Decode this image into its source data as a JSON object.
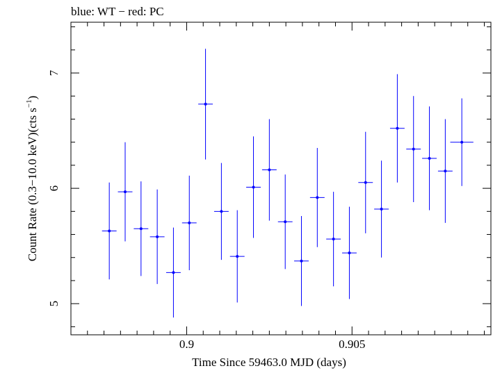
{
  "chart_data": {
    "type": "scatter",
    "title": "blue: WT − red: PC",
    "xlabel": "Time Since 59463.0 MJD (days)",
    "ylabel_main": "Count Rate (0.3−10.0 keV)(cts s",
    "ylabel_sup": "−1",
    "ylabel_close": ")",
    "xlim": [
      0.8965,
      0.9092
    ],
    "ylim": [
      4.73,
      7.44
    ],
    "x_ticks": [
      {
        "value": 0.9,
        "label": "0.9"
      },
      {
        "value": 0.905,
        "label": "0.905"
      }
    ],
    "x_minor_step": 0.0005,
    "y_ticks": [
      {
        "value": 5,
        "label": "5"
      },
      {
        "value": 6,
        "label": "6"
      },
      {
        "value": 7,
        "label": "7"
      }
    ],
    "y_minor_step": 0.2,
    "grid": false,
    "series": [
      {
        "color": "#0000ff",
        "points": [
          {
            "x": 0.89766,
            "xerr": 0.00022,
            "y": 5.63,
            "yerr": 0.42
          },
          {
            "x": 0.89814,
            "xerr": 0.00022,
            "y": 5.97,
            "yerr": 0.43
          },
          {
            "x": 0.89862,
            "xerr": 0.00022,
            "y": 5.65,
            "yerr": 0.41
          },
          {
            "x": 0.89911,
            "xerr": 0.00022,
            "y": 5.58,
            "yerr": 0.41
          },
          {
            "x": 0.8996,
            "xerr": 0.00022,
            "y": 5.27,
            "yerr": 0.39
          },
          {
            "x": 0.90008,
            "xerr": 0.00022,
            "y": 5.7,
            "yerr": 0.41
          },
          {
            "x": 0.90057,
            "xerr": 0.00022,
            "y": 6.73,
            "yerr": 0.48
          },
          {
            "x": 0.90105,
            "xerr": 0.00022,
            "y": 5.8,
            "yerr": 0.42
          },
          {
            "x": 0.90153,
            "xerr": 0.00022,
            "y": 5.41,
            "yerr": 0.4
          },
          {
            "x": 0.90202,
            "xerr": 0.00022,
            "y": 6.01,
            "yerr": 0.44
          },
          {
            "x": 0.9025,
            "xerr": 0.00022,
            "y": 6.16,
            "yerr": 0.44
          },
          {
            "x": 0.90298,
            "xerr": 0.00022,
            "y": 5.71,
            "yerr": 0.41
          },
          {
            "x": 0.90347,
            "xerr": 0.00022,
            "y": 5.37,
            "yerr": 0.39
          },
          {
            "x": 0.90395,
            "xerr": 0.00022,
            "y": 5.92,
            "yerr": 0.43
          },
          {
            "x": 0.90444,
            "xerr": 0.00022,
            "y": 5.56,
            "yerr": 0.41
          },
          {
            "x": 0.90492,
            "xerr": 0.00022,
            "y": 5.44,
            "yerr": 0.4
          },
          {
            "x": 0.90541,
            "xerr": 0.00022,
            "y": 6.05,
            "yerr": 0.44
          },
          {
            "x": 0.90589,
            "xerr": 0.00022,
            "y": 5.82,
            "yerr": 0.42
          },
          {
            "x": 0.90637,
            "xerr": 0.00022,
            "y": 6.52,
            "yerr": 0.47
          },
          {
            "x": 0.90686,
            "xerr": 0.00022,
            "y": 6.34,
            "yerr": 0.46
          },
          {
            "x": 0.90734,
            "xerr": 0.00022,
            "y": 6.26,
            "yerr": 0.45
          },
          {
            "x": 0.90782,
            "xerr": 0.00022,
            "y": 6.15,
            "yerr": 0.45
          },
          {
            "x": 0.90832,
            "xerr": 0.00035,
            "y": 6.4,
            "yerr": 0.38
          }
        ]
      }
    ]
  }
}
